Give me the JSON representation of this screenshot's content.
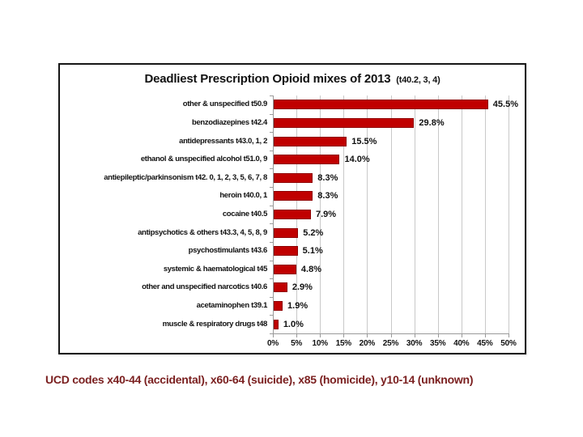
{
  "chart_data": {
    "type": "bar",
    "orientation": "horizontal",
    "title": "Deadliest Prescription Opioid mixes of 2013",
    "title_note": "(t40.2, 3, 4)",
    "categories": [
      "other & unspecified t50.9",
      "benzodiazepines t42.4",
      "antidepressants t43.0, 1, 2",
      "ethanol & unspecified alcohol t51.0, 9",
      "antiepileptic/parkinsonism t42. 0, 1, 2, 3, 5, 6, 7, 8",
      "heroin t40.0, 1",
      "cocaine t40.5",
      "antipsychotics & others t43.3, 4, 5, 8, 9",
      "psychostimulants t43.6",
      "systemic & haematological t45",
      "other and unspecified narcotics t40.6",
      "acetaminophen t39.1",
      "muscle & respiratory drugs t48"
    ],
    "values": [
      45.5,
      29.8,
      15.5,
      14.0,
      8.3,
      8.3,
      7.9,
      5.2,
      5.1,
      4.8,
      2.9,
      1.9,
      1.0
    ],
    "value_labels": [
      "45.5%",
      "29.8%",
      "15.5%",
      "14.0%",
      "8.3%",
      "8.3%",
      "7.9%",
      "5.2%",
      "5.1%",
      "4.8%",
      "2.9%",
      "1.9%",
      "1.0%"
    ],
    "xlim": [
      0,
      50
    ],
    "x_tick_step": 5,
    "x_tick_labels": [
      "0%",
      "5%",
      "10%",
      "15%",
      "20%",
      "25%",
      "30%",
      "35%",
      "40%",
      "45%",
      "50%"
    ],
    "grid": true,
    "legend": false,
    "bar_color": "#c00000",
    "bar_border_color": "#8e0000",
    "gridline_color": "#c9c9c9",
    "axis_color": "#9a9a9a"
  },
  "caption": "UCD codes x40-44 (accidental), x60-64 (suicide), x85 (homicide), y10-14 (unknown)",
  "colors": {
    "caption_text": "#7a1f1f",
    "title_text": "#111111",
    "chart_border": "#161616"
  }
}
